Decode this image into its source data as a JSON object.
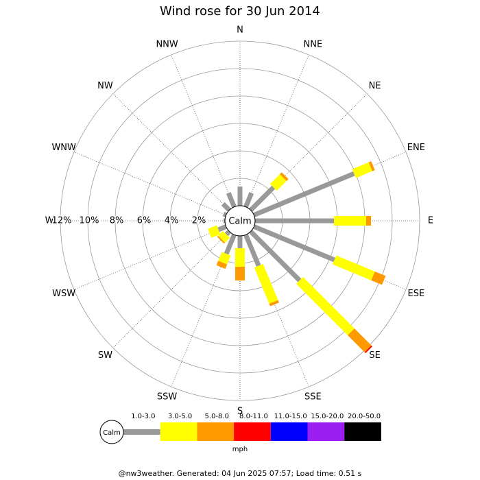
{
  "chart_data": {
    "type": "windrose",
    "title": "Wind rose for 30 Jun 2014",
    "categories": [
      "N",
      "NNE",
      "NE",
      "ENE",
      "E",
      "ESE",
      "SE",
      "SSE",
      "S",
      "SSW",
      "SW",
      "WSW",
      "W",
      "WNW",
      "NW",
      "NNW"
    ],
    "series": [
      {
        "name": "1.0-3.0",
        "color": "#999999",
        "values": [
          1.4,
          1.1,
          2.35,
          7.9,
          5.75,
          6.35,
          5.05,
          2.45,
          0.9,
          1.5,
          0.3,
          0.6,
          0.1,
          0.2,
          0.65,
          1.1
        ]
      },
      {
        "name": "3.0-5.0",
        "color": "#ffff00",
        "values": [
          0,
          0,
          1.0,
          1.3,
          2.35,
          3.05,
          5.3,
          2.85,
          1.35,
          0.7,
          0.5,
          0.7,
          0,
          0,
          0,
          0
        ]
      },
      {
        "name": "5.0-8.0",
        "color": "#ff9900",
        "values": [
          0,
          0,
          0.2,
          0.2,
          0.35,
          0.85,
          1.75,
          0.2,
          1.0,
          0.35,
          0.1,
          0,
          0,
          0,
          0,
          0
        ]
      },
      {
        "name": "8.0-11.0",
        "color": "#ff0000",
        "values": [
          0,
          0,
          0,
          0,
          0,
          0,
          0.1,
          0,
          0,
          0,
          0,
          0,
          0,
          0,
          0,
          0
        ]
      },
      {
        "name": "11.0-15.0",
        "color": "#0000ff",
        "values": [
          0,
          0,
          0,
          0,
          0,
          0,
          0,
          0,
          0,
          0,
          0,
          0,
          0,
          0,
          0,
          0
        ]
      },
      {
        "name": "15.0-20.0",
        "color": "#9b1ff0",
        "values": [
          0,
          0,
          0,
          0,
          0,
          0,
          0,
          0,
          0,
          0,
          0,
          0,
          0,
          0,
          0,
          0
        ]
      },
      {
        "name": "20.0-50.0",
        "color": "#000000",
        "values": [
          0,
          0,
          0,
          0,
          0,
          0,
          0,
          0,
          0,
          0,
          0,
          0,
          0,
          0,
          0,
          0
        ]
      }
    ],
    "ylim": [
      0,
      12
    ],
    "yticks": [
      {
        "value": 2,
        "label": "2%"
      },
      {
        "value": 4,
        "label": "4%"
      },
      {
        "value": 6,
        "label": "6%"
      },
      {
        "value": 8,
        "label": "8%"
      },
      {
        "value": 10,
        "label": "10%"
      },
      {
        "value": 12,
        "label": "12%"
      }
    ],
    "calm_label": "Calm",
    "unit": "mph"
  },
  "footer": "@nw3weather. Generated: 04 Jun 2025 07:57; Load time: 0.51 s"
}
